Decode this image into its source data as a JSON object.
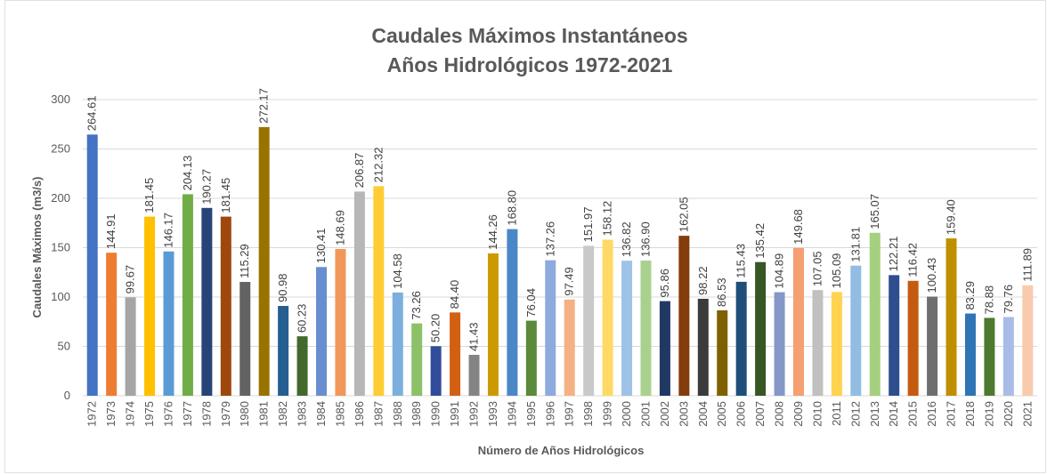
{
  "chart_data": {
    "type": "bar",
    "title": "Caudales Máximos Instantáneos",
    "subtitle": "Años Hidrológicos 1972-2021",
    "y_label": "Caudales Máximos (m3/s)",
    "x_label": "Número de Años Hidrológicos",
    "categories": [
      "1972",
      "1973",
      "1974",
      "1975",
      "1976",
      "1977",
      "1978",
      "1979",
      "1980",
      "1981",
      "1982",
      "1983",
      "1984",
      "1985",
      "1986",
      "1987",
      "1988",
      "1989",
      "1990",
      "1991",
      "1992",
      "1993",
      "1994",
      "1995",
      "1996",
      "1997",
      "1998",
      "1999",
      "2000",
      "2001",
      "2002",
      "2003",
      "2004",
      "2005",
      "2006",
      "2007",
      "2008",
      "2009",
      "2010",
      "2011",
      "2012",
      "2013",
      "2014",
      "2015",
      "2016",
      "2017",
      "2018",
      "2019",
      "2020",
      "2021"
    ],
    "values": [
      264.61,
      144.91,
      99.67,
      181.45,
      146.17,
      204.13,
      190.27,
      181.45,
      115.29,
      272.17,
      90.98,
      60.23,
      130.41,
      148.69,
      206.87,
      212.32,
      104.58,
      73.26,
      50.2,
      84.4,
      41.43,
      144.26,
      168.8,
      76.04,
      137.26,
      97.49,
      151.97,
      158.12,
      136.82,
      136.9,
      95.86,
      162.05,
      98.22,
      86.53,
      115.43,
      135.42,
      104.89,
      149.68,
      107.05,
      105.09,
      131.81,
      165.07,
      122.21,
      116.42,
      100.43,
      159.4,
      83.29,
      78.88,
      79.76,
      111.89
    ],
    "value_labels": [
      "264.61",
      "144.91",
      "99.67",
      "181.45",
      "146.17",
      "204.13",
      "190.27",
      "181.45",
      "115.29",
      "272.17",
      "90.98",
      "60.23",
      "130.41",
      "148.69",
      "206.87",
      "212.32",
      "104.58",
      "73.26",
      "50.20",
      "84.40",
      "41.43",
      "144.26",
      "168.80",
      "76.04",
      "137.26",
      "97.49",
      "151.97",
      "158.12",
      "136.82",
      "136.90",
      "95.86",
      "162.05",
      "98.22",
      "86.53",
      "115.43",
      "135.42",
      "104.89",
      "149.68",
      "107.05",
      "105.09",
      "131.81",
      "165.07",
      "122.21",
      "116.42",
      "100.43",
      "159.40",
      "83.29",
      "78.88",
      "79.76",
      "111.89"
    ],
    "colors": [
      "#4472c4",
      "#ed7d31",
      "#a5a5a5",
      "#ffc000",
      "#5b9bd5",
      "#70ad47",
      "#264478",
      "#9e480e",
      "#636363",
      "#997300",
      "#255e91",
      "#43682b",
      "#698ed0",
      "#f1975a",
      "#b7b7b7",
      "#ffcd33",
      "#7cafdd",
      "#8cc168",
      "#314c9a",
      "#d26012",
      "#848484",
      "#cc9a00",
      "#4a87c7",
      "#5a8a3a",
      "#8faadc",
      "#f4b183",
      "#c9c9c9",
      "#ffd966",
      "#9dc3e6",
      "#a9d18e",
      "#203864",
      "#843c0c",
      "#3b3b3b",
      "#7f6000",
      "#1f4e79",
      "#375623",
      "#8497c7",
      "#f4a070",
      "#c0c0c0",
      "#ffd34f",
      "#91bde3",
      "#a4d07f",
      "#2e4e8e",
      "#c55a11",
      "#6e6e6e",
      "#bf8f00",
      "#2e75b6",
      "#4e7a30",
      "#a9bce6",
      "#f8cbad"
    ],
    "ylim": [
      0,
      300
    ],
    "yticks": [
      0,
      50,
      100,
      150,
      200,
      250,
      300
    ],
    "grid": true
  }
}
